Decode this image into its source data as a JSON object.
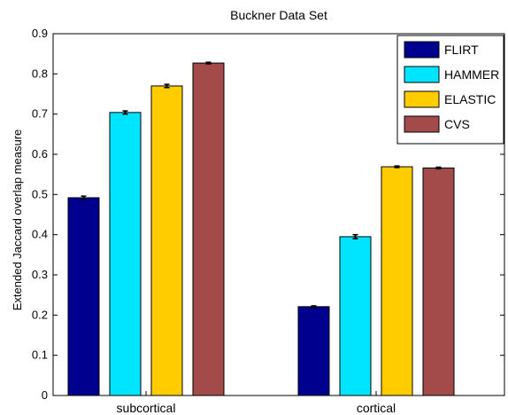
{
  "chart_data": {
    "type": "bar",
    "title": "Buckner Data Set",
    "xlabel": "",
    "ylabel": "Extended Jaccard overlap measure",
    "categories": [
      "subcortical",
      "cortical"
    ],
    "ylim": [
      0,
      0.9
    ],
    "yticks": [
      "0",
      "0.1",
      "0.2",
      "0.3",
      "0.4",
      "0.5",
      "0.6",
      "0.7",
      "0.8",
      "0.9"
    ],
    "legend_position": "top-right",
    "grid": false,
    "series": [
      {
        "name": "FLIRT",
        "color": "#00008f",
        "values": [
          0.492,
          0.221
        ],
        "errors": [
          0.004,
          0.002
        ]
      },
      {
        "name": "HAMMER",
        "color": "#00e5ff",
        "values": [
          0.704,
          0.395
        ],
        "errors": [
          0.004,
          0.005
        ]
      },
      {
        "name": "ELASTIC",
        "color": "#ffcc00",
        "values": [
          0.77,
          0.569
        ],
        "errors": [
          0.004,
          0.002
        ]
      },
      {
        "name": "CVS",
        "color": "#a34a4a",
        "values": [
          0.827,
          0.566
        ],
        "errors": [
          0.002,
          0.002
        ]
      }
    ]
  }
}
